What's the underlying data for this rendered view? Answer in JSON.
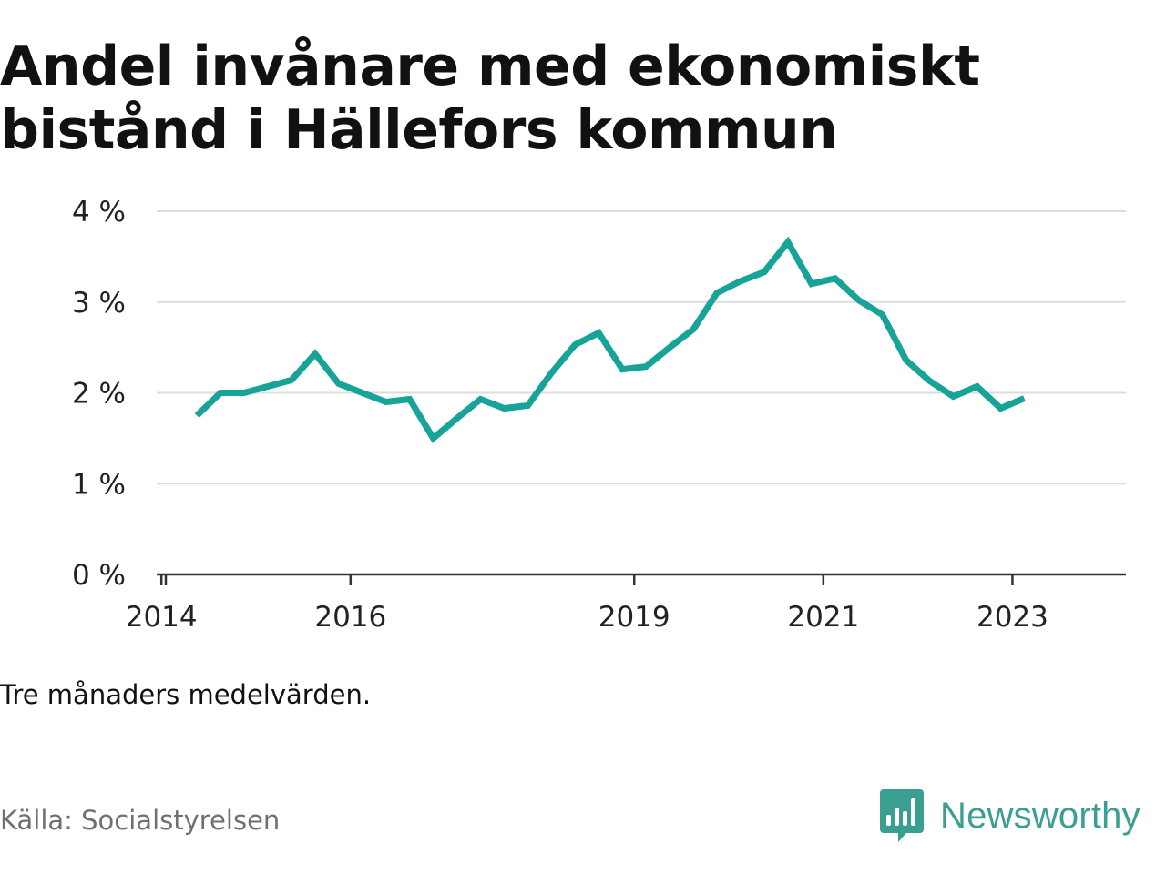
{
  "title": "Andel invånare med ekonomiskt bistånd i Hällefors kommun",
  "note": "Tre månaders medelvärden.",
  "source": "Källa: Socialstyrelsen",
  "brand": {
    "name": "Newsworthy",
    "icon": "newsworthy-logo-icon",
    "color": "#3a9e91"
  },
  "chart_data": {
    "type": "line",
    "title": "Andel invånare med ekonomiskt bistånd i Hällefors kommun",
    "xlabel": "",
    "ylabel": "",
    "xlim": [
      2013.95,
      2024.2
    ],
    "ylim": [
      0,
      4
    ],
    "yticks": [
      0,
      1,
      2,
      3,
      4
    ],
    "ytick_labels": [
      "0 %",
      "1 %",
      "2 %",
      "3 %",
      "4 %"
    ],
    "xticks": [
      2014,
      2016,
      2019,
      2021,
      2023
    ],
    "xtick_labels": [
      "2014",
      "2016",
      "2019",
      "2021",
      "2023"
    ],
    "grid": true,
    "line_color": "#17a398",
    "series": [
      {
        "x": [
          2014.375,
          2014.625,
          2014.875,
          2015.125,
          2015.375,
          2015.625,
          2015.875,
          2016.125,
          2016.375,
          2016.625,
          2016.875,
          2017.125,
          2017.375,
          2017.625,
          2017.875,
          2018.125,
          2018.375,
          2018.625,
          2018.875,
          2019.125,
          2019.375,
          2019.625,
          2019.875,
          2020.125,
          2020.375,
          2020.625,
          2020.875,
          2021.125,
          2021.375,
          2021.625,
          2021.875,
          2022.125,
          2022.375,
          2022.625,
          2022.875,
          2023.125
        ],
        "values": [
          1.75,
          2.0,
          2.0,
          2.07,
          2.14,
          2.43,
          2.1,
          2.0,
          1.9,
          1.93,
          1.5,
          1.72,
          1.93,
          1.83,
          1.86,
          2.22,
          2.53,
          2.66,
          2.26,
          2.29,
          2.5,
          2.7,
          3.1,
          3.23,
          3.33,
          3.66,
          3.2,
          3.26,
          3.02,
          2.86,
          2.36,
          2.13,
          1.96,
          2.07,
          1.83,
          1.94
        ]
      }
    ]
  }
}
